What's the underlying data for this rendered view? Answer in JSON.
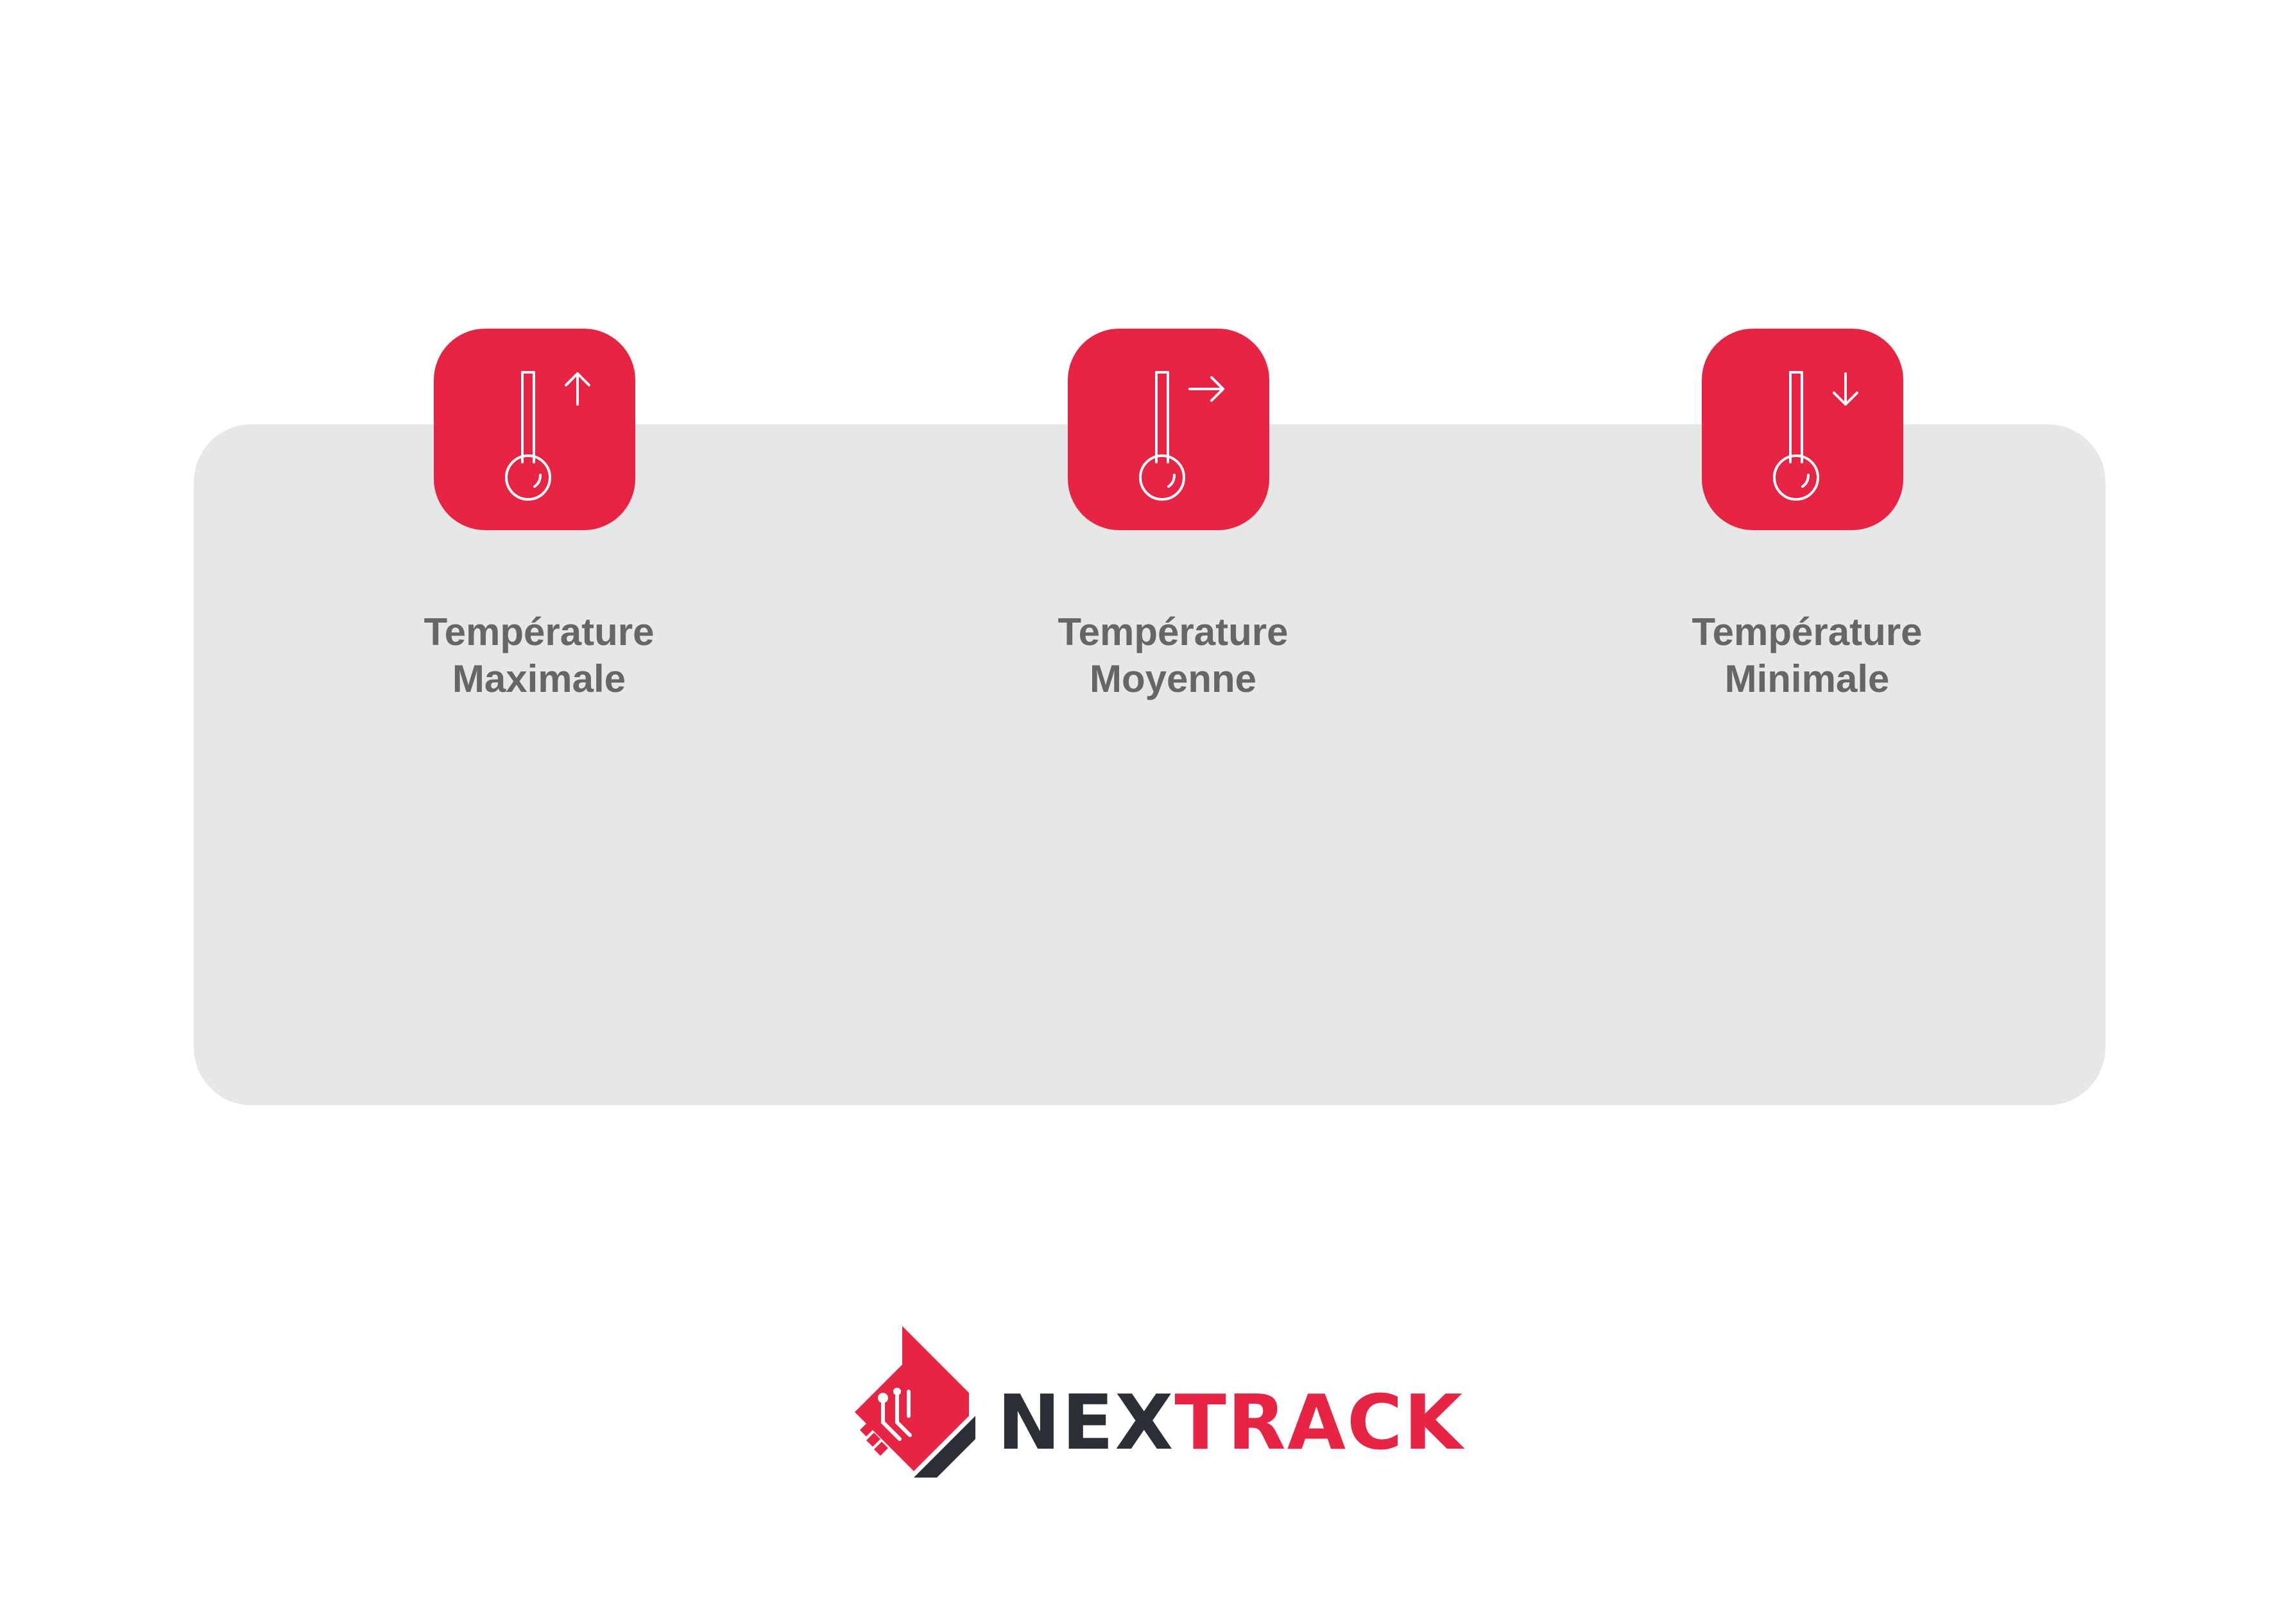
{
  "colors": {
    "accent": "#e72444",
    "panel": "#e6e7e7",
    "label_text": "#666665",
    "logo_dark": "#2c2f36"
  },
  "cards": [
    {
      "icon": "thermometer-arrow-up-icon",
      "line1": "Température",
      "line2": "Maximale"
    },
    {
      "icon": "thermometer-arrow-right-icon",
      "line1": "Température",
      "line2": "Moyenne"
    },
    {
      "icon": "thermometer-arrow-down-icon",
      "line1": "Température",
      "line2": "Minimale"
    }
  ],
  "logo": {
    "part1": "NEX",
    "part2": "TRACK"
  }
}
